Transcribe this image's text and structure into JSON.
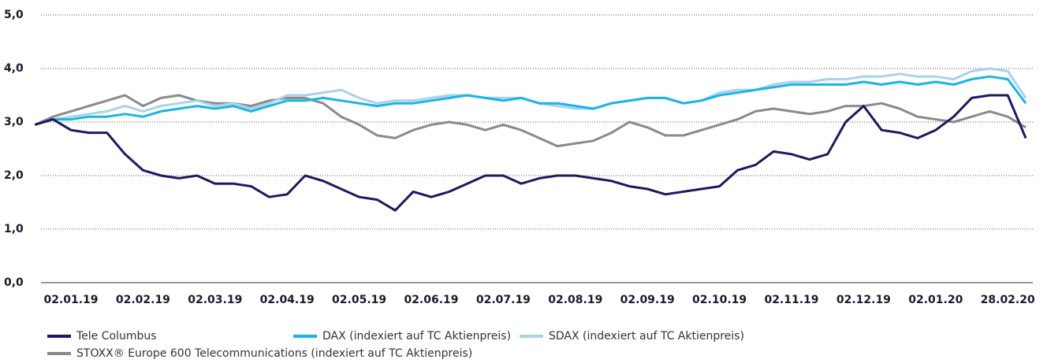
{
  "chart_data": {
    "type": "line",
    "categories": [
      null,
      null,
      "02.01.19",
      null,
      null,
      null,
      "02.02.19",
      null,
      null,
      null,
      "02.03.19",
      null,
      null,
      null,
      "02.04.19",
      null,
      null,
      null,
      "02.05.19",
      null,
      null,
      null,
      "02.06.19",
      null,
      null,
      null,
      "02.07.19",
      null,
      null,
      null,
      "02.08.19",
      null,
      null,
      null,
      "02.09.19",
      null,
      null,
      null,
      "02.10.19",
      null,
      null,
      null,
      "02.11.19",
      null,
      null,
      null,
      "02.12.19",
      null,
      null,
      null,
      "02.01.20",
      null,
      null,
      null,
      "28.02.20",
      null
    ],
    "series": [
      {
        "name": "Tele Columbus",
        "color": "#1c1a5e",
        "values": [
          2.95,
          3.05,
          2.85,
          2.8,
          2.8,
          2.4,
          2.1,
          2.0,
          1.95,
          2.0,
          1.85,
          1.85,
          1.8,
          1.6,
          1.65,
          2.0,
          1.9,
          1.75,
          1.6,
          1.55,
          1.35,
          1.7,
          1.6,
          1.7,
          1.85,
          2.0,
          2.0,
          1.85,
          1.95,
          2.0,
          2.0,
          1.95,
          1.9,
          1.8,
          1.75,
          1.65,
          1.7,
          1.75,
          1.8,
          2.1,
          2.2,
          2.45,
          2.4,
          2.3,
          2.4,
          3.0,
          3.3,
          2.85,
          2.8,
          2.7,
          2.85,
          3.1,
          3.45,
          3.5,
          3.5,
          2.7
        ]
      },
      {
        "name": "DAX (indexiert auf TC Aktienpreis)",
        "color": "#18b4e6",
        "values": [
          2.95,
          3.05,
          3.05,
          3.1,
          3.1,
          3.15,
          3.1,
          3.2,
          3.25,
          3.3,
          3.25,
          3.3,
          3.2,
          3.3,
          3.4,
          3.4,
          3.45,
          3.4,
          3.35,
          3.3,
          3.35,
          3.35,
          3.4,
          3.45,
          3.5,
          3.45,
          3.4,
          3.45,
          3.35,
          3.35,
          3.3,
          3.25,
          3.35,
          3.4,
          3.45,
          3.45,
          3.35,
          3.4,
          3.5,
          3.55,
          3.6,
          3.65,
          3.7,
          3.7,
          3.7,
          3.7,
          3.75,
          3.7,
          3.75,
          3.7,
          3.75,
          3.7,
          3.8,
          3.85,
          3.8,
          3.35
        ]
      },
      {
        "name": "SDAX (indexiert auf TC Aktienpreis)",
        "color": "#a9d2ea",
        "values": [
          2.95,
          3.05,
          3.1,
          3.15,
          3.2,
          3.3,
          3.2,
          3.3,
          3.35,
          3.4,
          3.3,
          3.35,
          3.25,
          3.35,
          3.5,
          3.5,
          3.55,
          3.6,
          3.45,
          3.35,
          3.4,
          3.4,
          3.45,
          3.5,
          3.5,
          3.45,
          3.45,
          3.45,
          3.35,
          3.3,
          3.25,
          3.25,
          3.35,
          3.4,
          3.45,
          3.45,
          3.35,
          3.4,
          3.55,
          3.6,
          3.6,
          3.7,
          3.75,
          3.75,
          3.8,
          3.8,
          3.85,
          3.85,
          3.9,
          3.85,
          3.85,
          3.8,
          3.95,
          4.0,
          3.95,
          3.45
        ]
      },
      {
        "name": "STOXX® Europe 600 Telecommunications (indexiert auf TC Aktienpreis)",
        "color": "#8a8a8a",
        "values": [
          2.95,
          3.1,
          3.2,
          3.3,
          3.4,
          3.5,
          3.3,
          3.45,
          3.5,
          3.4,
          3.35,
          3.35,
          3.3,
          3.4,
          3.45,
          3.45,
          3.35,
          3.1,
          2.95,
          2.75,
          2.7,
          2.85,
          2.95,
          3.0,
          2.95,
          2.85,
          2.95,
          2.85,
          2.7,
          2.55,
          2.6,
          2.65,
          2.8,
          3.0,
          2.9,
          2.75,
          2.75,
          2.85,
          2.95,
          3.05,
          3.2,
          3.25,
          3.2,
          3.15,
          3.2,
          3.3,
          3.3,
          3.35,
          3.25,
          3.1,
          3.05,
          3.0,
          3.1,
          3.2,
          3.1,
          2.9
        ]
      }
    ],
    "ylim": [
      0,
      5
    ],
    "yticks": [
      {
        "value": 0,
        "label": "0,0"
      },
      {
        "value": 1,
        "label": "1,0"
      },
      {
        "value": 2,
        "label": "2,0"
      },
      {
        "value": 3,
        "label": "3,0"
      },
      {
        "value": 4,
        "label": "4,0"
      },
      {
        "value": 5,
        "label": "5,0"
      }
    ],
    "grid": true
  }
}
